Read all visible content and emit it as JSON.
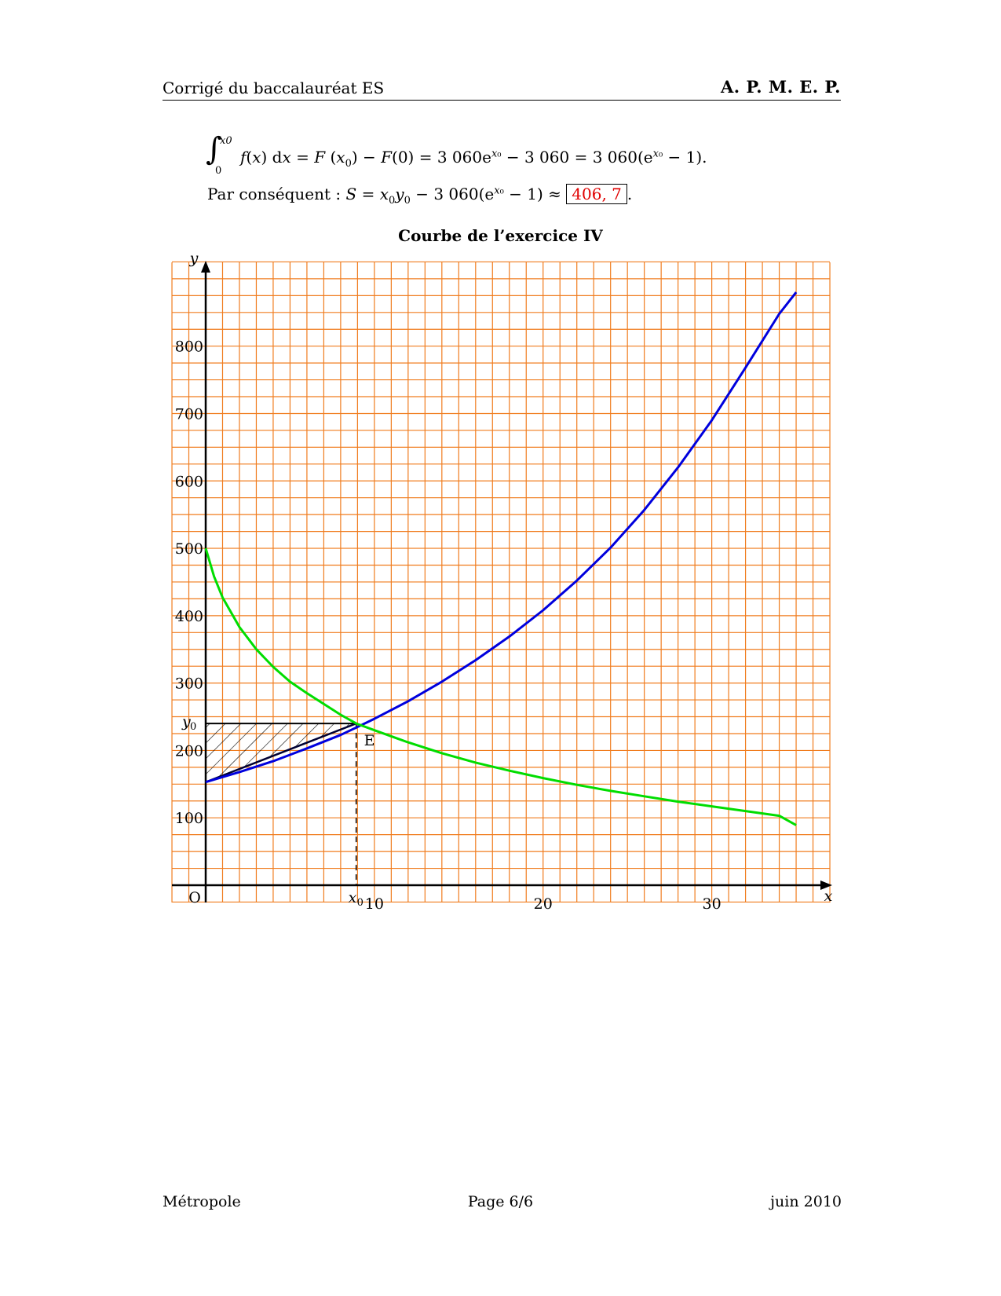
{
  "header": {
    "left": "Corrigé du baccalauréat ES",
    "right": "A. P. M. E. P."
  },
  "equations": {
    "integral_upper": "x0",
    "integral_lower": "0",
    "line1_parts": {
      "f": "f",
      "a": "(",
      "x": "x",
      "b": ") d",
      "x2": "x",
      "c": " = ",
      "F1": "F",
      "d": " (",
      "x0a": "x",
      "e": ") − ",
      "F2": "F",
      "g": "(0) = 3 060e",
      "h": " − 3 060 = 3 060",
      "i": "(e",
      "j": " − 1)."
    },
    "line2_parts": {
      "prefix": "Par conséquent : ",
      "S": "S",
      "eq": " = ",
      "x0": "x",
      "y0": "y",
      "mid": " − 3 060",
      "paren": "(e",
      "close": " − 1) ≈ ",
      "result": "406, 7",
      "end": "."
    }
  },
  "chart_data": {
    "type": "line",
    "title": "Courbe de l’exercice IV",
    "xlabel": "x",
    "ylabel": "y",
    "xlim": [
      -2,
      37
    ],
    "ylim": [
      -25,
      925
    ],
    "x_ticks": [
      10,
      20,
      30
    ],
    "y_ticks": [
      100,
      200,
      300,
      400,
      500,
      600,
      700,
      800
    ],
    "grid": true,
    "origin_label": "O",
    "series": [
      {
        "color": "#0000dd",
        "x": [
          0,
          2,
          4,
          6,
          8,
          8.92,
          10,
          12,
          14,
          16,
          18,
          20,
          22,
          24,
          26,
          28,
          30,
          32,
          34,
          35
        ],
        "y": [
          153,
          168,
          184,
          203,
          223,
          234,
          247,
          273,
          302,
          334,
          369,
          408,
          452,
          501,
          557,
          620,
          690,
          768,
          848,
          880
        ]
      },
      {
        "color": "#00dd00",
        "x": [
          0,
          0.5,
          1,
          2,
          3,
          4,
          5,
          6,
          8,
          8.92,
          10,
          12,
          14,
          16,
          18,
          20,
          22,
          24,
          26,
          28,
          30,
          32,
          34,
          35
        ],
        "y": [
          500,
          458,
          427,
          383,
          350,
          324,
          302,
          285,
          253,
          240,
          230,
          212,
          196,
          182,
          170,
          159,
          149,
          140,
          132,
          124,
          117,
          110,
          103,
          89
        ]
      }
    ],
    "annotations": {
      "point_E": {
        "label": "E",
        "x": 8.92,
        "y": 240
      },
      "x0_label": "x",
      "y0_label": "y",
      "hatched_region": {
        "x_from": 0,
        "x_to": 8.92,
        "y_top": 240,
        "y_bottom_start": 153
      }
    },
    "colors": {
      "grid": "#f07c1e",
      "axes": "#000000",
      "hatch": "#000000",
      "tangent": "#000033"
    }
  },
  "footer": {
    "left": "Métropole",
    "center": "Page 6/6",
    "right": "juin 2010"
  }
}
